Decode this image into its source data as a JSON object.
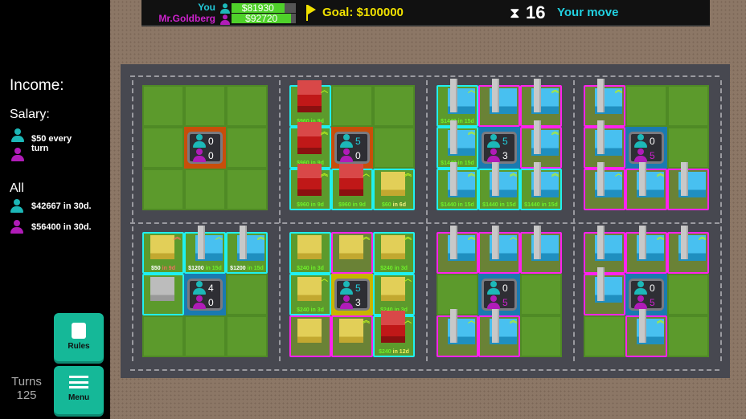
{
  "colors": {
    "you": "#1cb8b8",
    "opponent": "#b01cb8",
    "you_text": "#22d0e0",
    "opponent_text": "#cc22cc",
    "accent": "#15b898"
  },
  "topbar": {
    "players": [
      {
        "name": "You",
        "money": "$81930",
        "progress": 0.82
      },
      {
        "name": "Mr.Goldberg",
        "money": "$92720",
        "progress": 0.93
      }
    ],
    "goal": "Goal: $100000",
    "goal_icon": "flag-icon",
    "days": "16",
    "status": "Your move",
    "timer_icon": "hourglass-icon"
  },
  "sidebar": {
    "income_title": "Income:",
    "salary_title": "Salary:",
    "salary_text": "$50 every turn",
    "all_title": "All",
    "all_you": "$42667 in 30d.",
    "all_opponent": "$56400 in 30d.",
    "rules_label": "Rules",
    "menu_label": "Menu",
    "turns_label": "Turns",
    "turns_value": "125"
  },
  "board": {
    "blocks": [
      {
        "cells": [
          {
            "t": "empty"
          },
          {
            "t": "empty"
          },
          {
            "t": "empty"
          },
          {
            "t": "empty"
          },
          {
            "t": "center",
            "bg": "#c84e0a",
            "you": "0",
            "opp": "0",
            "ycol": "#fff",
            "ocol": "#fff"
          },
          {
            "t": "empty"
          },
          {
            "t": "empty"
          },
          {
            "t": "empty"
          },
          {
            "t": "empty"
          }
        ]
      },
      {
        "cells": [
          {
            "t": "red",
            "o": "you",
            "amount": "$960",
            "when": "in 9d",
            "ac": "#6ef02a",
            "wc": "#6ef02a",
            "up": "^"
          },
          {
            "t": "empty"
          },
          {
            "t": "empty"
          },
          {
            "t": "red",
            "o": "you",
            "amount": "$960",
            "when": "in 9d",
            "ac": "#6ef02a",
            "wc": "#6ef02a",
            "up": "^^"
          },
          {
            "t": "center",
            "bg": "#c84e0a",
            "you": "5",
            "opp": "0",
            "ycol": "#22d0e0",
            "ocol": "#fff"
          },
          {
            "t": "empty"
          },
          {
            "t": "red",
            "o": "you",
            "amount": "$960",
            "when": "in 9d",
            "ac": "#6ef02a",
            "wc": "#6ef02a",
            "up": "^^"
          },
          {
            "t": "red",
            "o": "you",
            "amount": "$960",
            "when": "in 9d",
            "ac": "#6ef02a",
            "wc": "#6ef02a",
            "up": "^"
          },
          {
            "t": "yellow",
            "o": "you",
            "amount": "$60",
            "when": "in 6d",
            "ac": "#6ef02a",
            "wc": "#f0f080",
            "up": "^^"
          }
        ]
      },
      {
        "cells": [
          {
            "t": "factory",
            "o": "you",
            "amount": "$1440",
            "when": "in 15d",
            "ac": "#6ef02a",
            "wc": "#6ef02a",
            "up": "^"
          },
          {
            "t": "factory",
            "o": "opp"
          },
          {
            "t": "factory",
            "o": "opp",
            "up": "^^"
          },
          {
            "t": "factory",
            "o": "you",
            "amount": "$1440",
            "when": "in 15d",
            "ac": "#6ef02a",
            "wc": "#6ef02a",
            "up": "^^"
          },
          {
            "t": "center",
            "bg": "#1a7ab0",
            "you": "5",
            "opp": "3",
            "ycol": "#22d0e0",
            "ocol": "#fff"
          },
          {
            "t": "factory",
            "o": "opp",
            "up": "^^"
          },
          {
            "t": "factory",
            "o": "you",
            "amount": "$1440",
            "when": "in 15d",
            "ac": "#6ef02a",
            "wc": "#6ef02a",
            "up": "^^"
          },
          {
            "t": "factory",
            "o": "you",
            "amount": "$1440",
            "when": "in 15d",
            "ac": "#6ef02a",
            "wc": "#6ef02a",
            "up": "^^"
          },
          {
            "t": "factory",
            "o": "you",
            "amount": "$1440",
            "when": "in 15d",
            "ac": "#6ef02a",
            "wc": "#6ef02a",
            "up": "^^"
          }
        ]
      },
      {
        "cells": [
          {
            "t": "factory",
            "o": "opp",
            "up": "^^"
          },
          {
            "t": "empty"
          },
          {
            "t": "empty"
          },
          {
            "t": "factory",
            "o": "opp"
          },
          {
            "t": "center",
            "bg": "#1a7ab0",
            "you": "0",
            "opp": "5",
            "ycol": "#fff",
            "ocol": "#cc22cc"
          },
          {
            "t": "empty"
          },
          {
            "t": "factory",
            "o": "opp",
            "up": "^"
          },
          {
            "t": "factory",
            "o": "opp",
            "up": "^^"
          },
          {
            "t": "factory",
            "o": "opp"
          }
        ]
      },
      {
        "cells": [
          {
            "t": "yellow",
            "o": "you",
            "amount": "$50",
            "when": "in 9d",
            "ac": "#fff",
            "wc": "#f07060",
            "up": "^^",
            "upc": "#f07060"
          },
          {
            "t": "factory",
            "o": "you",
            "amount": "$1200",
            "when": "in 15d",
            "ac": "#fff",
            "wc": "#6ef02a",
            "up": "^"
          },
          {
            "t": "factory",
            "o": "you",
            "amount": "$1200",
            "when": "in 15d",
            "ac": "#fff",
            "wc": "#6ef02a",
            "up": "^^"
          },
          {
            "t": "gray",
            "o": "you"
          },
          {
            "t": "center",
            "bg": "#1a7ab0",
            "you": "4",
            "opp": "0",
            "ycol": "#fff",
            "ocol": "#fff"
          },
          {
            "t": "empty"
          },
          {
            "t": "empty"
          },
          {
            "t": "empty"
          },
          {
            "t": "empty"
          }
        ]
      },
      {
        "cells": [
          {
            "t": "yellow",
            "o": "you",
            "amount": "$240",
            "when": "in 3d",
            "ac": "#6ef02a",
            "wc": "#6ef02a"
          },
          {
            "t": "yellow",
            "o": "opp",
            "up": "^^"
          },
          {
            "t": "yellow",
            "o": "you",
            "amount": "$240",
            "when": "in 3d",
            "ac": "#6ef02a",
            "wc": "#6ef02a",
            "up": "^^"
          },
          {
            "t": "yellow",
            "o": "you",
            "amount": "$240",
            "when": "in 3d",
            "ac": "#6ef02a",
            "wc": "#6ef02a",
            "up": "^"
          },
          {
            "t": "center",
            "bg": "#c8b400",
            "you": "5",
            "opp": "3",
            "ycol": "#22d0e0",
            "ocol": "#fff"
          },
          {
            "t": "yellow",
            "o": "you",
            "amount": "$240",
            "when": "in 3d",
            "ac": "#6ef02a",
            "wc": "#6ef02a",
            "up": "^"
          },
          {
            "t": "yellow",
            "o": "opp"
          },
          {
            "t": "yellow",
            "o": "opp",
            "up": "^^"
          },
          {
            "t": "red",
            "o": "you",
            "amount": "$240",
            "when": "in 12d",
            "ac": "#6ef02a",
            "wc": "#f0f060",
            "up": "^"
          }
        ]
      },
      {
        "cells": [
          {
            "t": "factory",
            "o": "opp",
            "up": "^^"
          },
          {
            "t": "factory",
            "o": "opp",
            "up": "^"
          },
          {
            "t": "factory",
            "o": "opp"
          },
          {
            "t": "empty"
          },
          {
            "t": "center",
            "bg": "#1a7ab0",
            "you": "0",
            "opp": "5",
            "ycol": "#fff",
            "ocol": "#cc22cc"
          },
          {
            "t": "empty"
          },
          {
            "t": "factory",
            "o": "opp",
            "up": "^"
          },
          {
            "t": "factory",
            "o": "opp",
            "up": "^^"
          },
          {
            "t": "empty"
          }
        ]
      },
      {
        "cells": [
          {
            "t": "factory",
            "o": "opp"
          },
          {
            "t": "factory",
            "o": "opp",
            "up": "^^"
          },
          {
            "t": "factory",
            "o": "opp",
            "up": "^^"
          },
          {
            "t": "factory",
            "o": "opp"
          },
          {
            "t": "center",
            "bg": "#1a7ab0",
            "you": "0",
            "opp": "5",
            "ycol": "#fff",
            "ocol": "#cc22cc"
          },
          {
            "t": "empty"
          },
          {
            "t": "empty"
          },
          {
            "t": "factory",
            "o": "opp",
            "up": "^^"
          },
          {
            "t": "empty"
          }
        ]
      }
    ]
  }
}
